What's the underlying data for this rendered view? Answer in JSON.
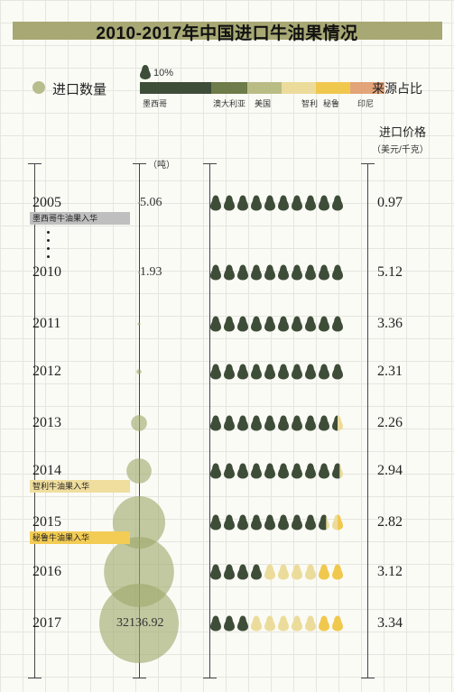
{
  "chart_data": {
    "type": "infographic",
    "title": "2010-2017年中国进口牛油果情况",
    "legend_count_label": "进口数量",
    "percent_legend": "10%",
    "source_title": "来源占比",
    "price_title": "进口价格",
    "price_unit": "（美元/千克）",
    "amount_unit": "（吨）",
    "sources": [
      {
        "name": "墨西哥",
        "color": "#3e4d38"
      },
      {
        "name": "澳大利亚",
        "color": "#6e7b4a"
      },
      {
        "name": "美国",
        "color": "#b9bd85"
      },
      {
        "name": "智利",
        "color": "#ecdc9b"
      },
      {
        "name": "秘鲁",
        "color": "#f1c84e"
      },
      {
        "name": "印尼",
        "color": "#e3a479"
      }
    ],
    "rows": [
      {
        "year": "2005",
        "amount_label": "5.06",
        "amount": 5.06,
        "price": "0.97",
        "note": "墨西哥牛油果入华",
        "note_color": "#bfbfbf",
        "shares": [
          {
            "source": "墨西哥",
            "pct": 100
          }
        ]
      },
      {
        "year": "2010",
        "amount_label": "1.93",
        "amount": 1.93,
        "price": "5.12",
        "note": "",
        "shares": [
          {
            "source": "墨西哥",
            "pct": 100
          }
        ]
      },
      {
        "year": "2011",
        "amount_label": "",
        "amount": 40,
        "price": "3.36",
        "note": "",
        "shares": [
          {
            "source": "墨西哥",
            "pct": 100
          }
        ]
      },
      {
        "year": "2012",
        "amount_label": "",
        "amount": 120,
        "price": "2.31",
        "note": "",
        "shares": [
          {
            "source": "墨西哥",
            "pct": 100
          }
        ]
      },
      {
        "year": "2013",
        "amount_label": "",
        "amount": 1300,
        "price": "2.26",
        "note": "",
        "shares": [
          {
            "source": "墨西哥",
            "pct": 95
          },
          {
            "source": "智利",
            "pct": 5
          }
        ]
      },
      {
        "year": "2014",
        "amount_label": "",
        "amount": 3200,
        "price": "2.94",
        "note": "智利牛油果入华",
        "note_color": "#f0de9e",
        "shares": [
          {
            "source": "墨西哥",
            "pct": 97
          },
          {
            "source": "智利",
            "pct": 3
          }
        ]
      },
      {
        "year": "2015",
        "amount_label": "",
        "amount": 14000,
        "price": "2.82",
        "note": "秘鲁牛油果入华",
        "note_color": "#f3cc55",
        "shares": [
          {
            "source": "墨西哥",
            "pct": 87
          },
          {
            "source": "智利",
            "pct": 8
          },
          {
            "source": "秘鲁",
            "pct": 5
          }
        ]
      },
      {
        "year": "2016",
        "amount_label": "",
        "amount": 25000,
        "price": "3.12",
        "note": "",
        "shares": [
          {
            "source": "墨西哥",
            "pct": 40
          },
          {
            "source": "智利",
            "pct": 40
          },
          {
            "source": "秘鲁",
            "pct": 20
          }
        ]
      },
      {
        "year": "2017",
        "amount_label": "32136.92",
        "amount": 32136.92,
        "price": "3.34",
        "note": "",
        "shares": [
          {
            "source": "墨西哥",
            "pct": 30
          },
          {
            "source": "智利",
            "pct": 50
          },
          {
            "source": "秘鲁",
            "pct": 20
          }
        ]
      }
    ]
  }
}
